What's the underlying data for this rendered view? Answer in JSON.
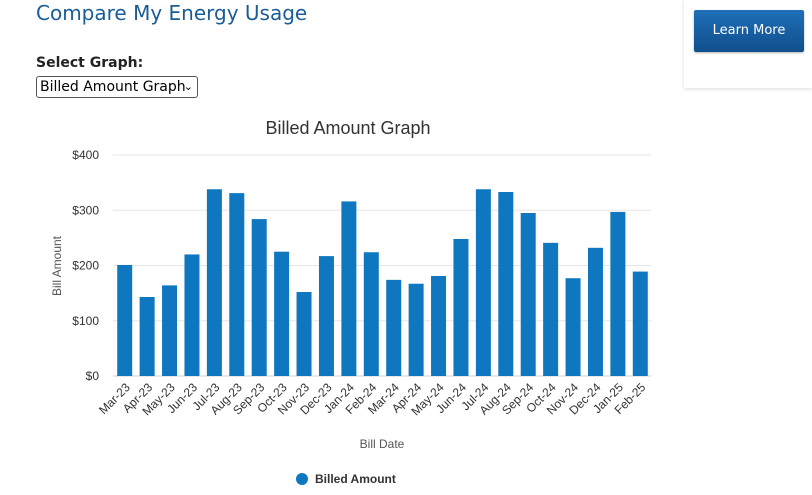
{
  "page": {
    "title": "Compare My Energy Usage",
    "select_label": "Select Graph:",
    "select_value": "Billed Amount Graph",
    "learn_more": "Learn More"
  },
  "colors": {
    "bar": "#0f77c0",
    "title": "#1a5d96",
    "button": "#165a9c"
  },
  "icons": {
    "select_arrow": "chevron-down-icon",
    "legend_marker": "circle-icon"
  },
  "chart_data": {
    "type": "bar",
    "title": "Billed Amount Graph",
    "xlabel": "Bill Date",
    "ylabel": "Bill Amount",
    "ylim": [
      0,
      400
    ],
    "yticks": [
      "$0",
      "$100",
      "$200",
      "$300",
      "$400"
    ],
    "ytick_values": [
      0,
      100,
      200,
      300,
      400
    ],
    "grid": true,
    "legend_position": "bottom-center",
    "categories": [
      "Mar-23",
      "Apr-23",
      "May-23",
      "Jun-23",
      "Jul-23",
      "Aug-23",
      "Sep-23",
      "Oct-23",
      "Nov-23",
      "Dec-23",
      "Jan-24",
      "Feb-24",
      "Mar-24",
      "Apr-24",
      "May-24",
      "Jun-24",
      "Jul-24",
      "Aug-24",
      "Sep-24",
      "Oct-24",
      "Nov-24",
      "Dec-24",
      "Jan-25",
      "Feb-25"
    ],
    "series": [
      {
        "name": "Billed Amount",
        "values": [
          201,
          143,
          164,
          220,
          338,
          331,
          284,
          225,
          152,
          217,
          316,
          224,
          174,
          167,
          181,
          248,
          338,
          333,
          295,
          241,
          177,
          232,
          297,
          189
        ]
      }
    ]
  }
}
